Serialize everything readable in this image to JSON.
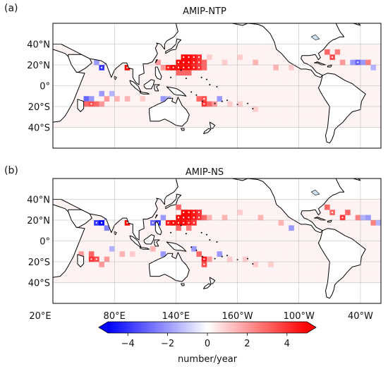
{
  "figure": {
    "panels": [
      {
        "tag": "(a)",
        "title": "AMIP-NTP"
      },
      {
        "tag": "(b)",
        "title": "AMIP-NS"
      }
    ],
    "lat_ticks": [
      "40°N",
      "20°N",
      "0°",
      "20°S",
      "40°S"
    ],
    "lon_ticks": [
      "20°E",
      "80°E",
      "140°E",
      "160°W",
      "100°W",
      "40°W"
    ],
    "colorbar": {
      "ticks": [
        "−4",
        "−2",
        "0",
        "2",
        "4"
      ],
      "label": "number/year",
      "range": [
        -5,
        5
      ],
      "extend": "both",
      "colors": {
        "negative": "#0000ff",
        "zero": "#ffffff",
        "positive": "#ff0000"
      }
    }
  },
  "chart_data": {
    "type": "heatmap",
    "units": "number/year",
    "lon_range": [
      20,
      340
    ],
    "lat_range": [
      -60,
      60
    ],
    "grid_spacing_deg": 5,
    "panels": [
      {
        "title": "AMIP-NTP",
        "values": [
          [
            145,
            25,
            5,
            true
          ],
          [
            150,
            25,
            5,
            true
          ],
          [
            155,
            25,
            4.5,
            true
          ],
          [
            160,
            25,
            4,
            true
          ],
          [
            140,
            20,
            5,
            true
          ],
          [
            145,
            20,
            5,
            true
          ],
          [
            150,
            20,
            5,
            true
          ],
          [
            155,
            20,
            4.5,
            true
          ],
          [
            160,
            20,
            4,
            true
          ],
          [
            165,
            20,
            3,
            false
          ],
          [
            130,
            15,
            4.5,
            true
          ],
          [
            135,
            15,
            5,
            true
          ],
          [
            140,
            15,
            5,
            true
          ],
          [
            145,
            15,
            5,
            true
          ],
          [
            150,
            15,
            5,
            true
          ],
          [
            155,
            15,
            4.5,
            true
          ],
          [
            160,
            15,
            4,
            true
          ],
          [
            165,
            15,
            3,
            false
          ],
          [
            140,
            10,
            3,
            false
          ],
          [
            145,
            10,
            3,
            false
          ],
          [
            150,
            10,
            3,
            false
          ],
          [
            90,
            15,
            5,
            true
          ],
          [
            120,
            20,
            2,
            false
          ],
          [
            125,
            15,
            2,
            false
          ],
          [
            60,
            20,
            -2,
            false
          ],
          [
            65,
            15,
            -4,
            true
          ],
          [
            70,
            20,
            -2,
            false
          ],
          [
            75,
            15,
            -1.5,
            false
          ],
          [
            170,
            25,
            1,
            false
          ],
          [
            185,
            20,
            1,
            false
          ],
          [
            200,
            25,
            1,
            false
          ],
          [
            215,
            20,
            1.5,
            false
          ],
          [
            235,
            15,
            1.5,
            false
          ],
          [
            250,
            15,
            1,
            false
          ],
          [
            285,
            30,
            3,
            false
          ],
          [
            290,
            25,
            3.5,
            true
          ],
          [
            295,
            30,
            2.5,
            false
          ],
          [
            300,
            20,
            2,
            false
          ],
          [
            310,
            20,
            -2,
            false
          ],
          [
            315,
            20,
            -3,
            true
          ],
          [
            320,
            20,
            -2,
            false
          ],
          [
            325,
            20,
            2.5,
            false
          ],
          [
            330,
            15,
            -1.5,
            false
          ],
          [
            50,
            -15,
            -3,
            false
          ],
          [
            55,
            -15,
            -2,
            false
          ],
          [
            65,
            -10,
            -2,
            false
          ],
          [
            75,
            -10,
            -1.5,
            false
          ],
          [
            50,
            -20,
            3,
            false
          ],
          [
            55,
            -20,
            3.5,
            true
          ],
          [
            60,
            -20,
            3,
            false
          ],
          [
            65,
            -20,
            2,
            false
          ],
          [
            70,
            -15,
            2,
            false
          ],
          [
            80,
            -15,
            1.5,
            false
          ],
          [
            90,
            -15,
            1.5,
            false
          ],
          [
            105,
            -15,
            1,
            false
          ],
          [
            125,
            -15,
            -2,
            false
          ],
          [
            130,
            -15,
            -1.5,
            false
          ],
          [
            160,
            -15,
            3,
            false
          ],
          [
            165,
            -15,
            3.5,
            true
          ],
          [
            165,
            -20,
            4,
            true
          ],
          [
            170,
            -20,
            3,
            false
          ],
          [
            175,
            -20,
            2,
            false
          ],
          [
            180,
            -15,
            -2,
            false
          ],
          [
            190,
            -20,
            1,
            false
          ],
          [
            200,
            -20,
            1,
            false
          ],
          [
            215,
            -25,
            1,
            false
          ]
        ]
      },
      {
        "title": "AMIP-NS",
        "values": [
          [
            140,
            30,
            3,
            false
          ],
          [
            145,
            25,
            5,
            true
          ],
          [
            150,
            25,
            5,
            true
          ],
          [
            155,
            25,
            4.5,
            true
          ],
          [
            160,
            25,
            4,
            true
          ],
          [
            140,
            20,
            5,
            true
          ],
          [
            145,
            20,
            5,
            true
          ],
          [
            150,
            20,
            5,
            true
          ],
          [
            155,
            20,
            4.5,
            true
          ],
          [
            160,
            20,
            4,
            true
          ],
          [
            165,
            20,
            3,
            false
          ],
          [
            130,
            15,
            4.5,
            true
          ],
          [
            135,
            15,
            5,
            true
          ],
          [
            140,
            15,
            5,
            true
          ],
          [
            145,
            15,
            5,
            true
          ],
          [
            150,
            15,
            4.5,
            true
          ],
          [
            155,
            15,
            4,
            true
          ],
          [
            115,
            15,
            -3,
            true
          ],
          [
            120,
            15,
            -4,
            true
          ],
          [
            125,
            20,
            -2,
            false
          ],
          [
            140,
            10,
            3,
            false
          ],
          [
            150,
            10,
            2.5,
            false
          ],
          [
            90,
            15,
            5,
            true
          ],
          [
            95,
            20,
            3,
            false
          ],
          [
            60,
            15,
            -4,
            true
          ],
          [
            65,
            15,
            -5,
            true
          ],
          [
            70,
            20,
            -2,
            false
          ],
          [
            70,
            10,
            -2.5,
            false
          ],
          [
            75,
            15,
            -2,
            false
          ],
          [
            170,
            20,
            1.5,
            false
          ],
          [
            185,
            20,
            1.5,
            false
          ],
          [
            200,
            25,
            1,
            false
          ],
          [
            220,
            20,
            1.5,
            false
          ],
          [
            240,
            15,
            1.5,
            false
          ],
          [
            250,
            10,
            -2,
            false
          ],
          [
            285,
            30,
            3,
            false
          ],
          [
            290,
            25,
            3,
            true
          ],
          [
            300,
            20,
            4,
            true
          ],
          [
            305,
            25,
            3,
            false
          ],
          [
            315,
            20,
            2.5,
            false
          ],
          [
            320,
            20,
            -1.5,
            false
          ],
          [
            325,
            20,
            -2,
            false
          ],
          [
            330,
            15,
            2.5,
            false
          ],
          [
            335,
            15,
            -1.5,
            false
          ],
          [
            45,
            -15,
            2,
            false
          ],
          [
            55,
            -15,
            3,
            false
          ],
          [
            55,
            -20,
            4,
            true
          ],
          [
            60,
            -20,
            3.5,
            true
          ],
          [
            65,
            -25,
            2,
            false
          ],
          [
            70,
            -20,
            2,
            false
          ],
          [
            75,
            -10,
            -1.5,
            false
          ],
          [
            85,
            -15,
            1.5,
            false
          ],
          [
            95,
            -15,
            1,
            false
          ],
          [
            115,
            -10,
            1.5,
            false
          ],
          [
            125,
            -15,
            -2,
            false
          ],
          [
            155,
            -10,
            -2,
            false
          ],
          [
            160,
            -15,
            3,
            false
          ],
          [
            165,
            -20,
            4.5,
            true
          ],
          [
            165,
            -25,
            3.5,
            true
          ],
          [
            170,
            -20,
            2,
            false
          ],
          [
            180,
            -15,
            -2,
            false
          ],
          [
            190,
            -20,
            1,
            false
          ],
          [
            205,
            -20,
            1,
            false
          ],
          [
            215,
            -25,
            1,
            false
          ],
          [
            230,
            -25,
            1,
            false
          ]
        ]
      }
    ]
  }
}
